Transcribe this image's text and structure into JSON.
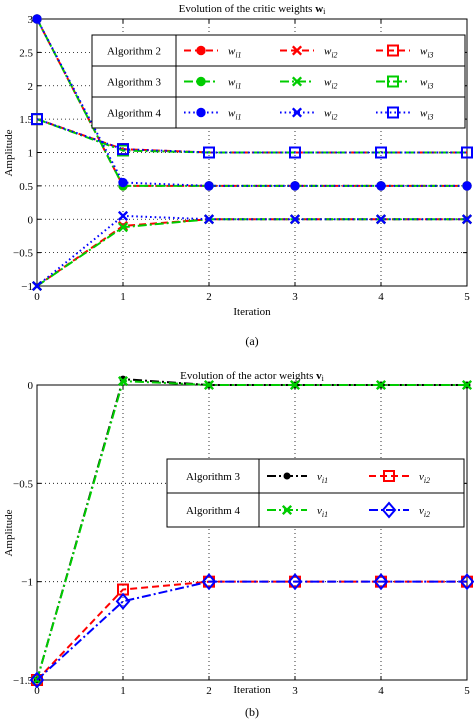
{
  "chart_data": [
    {
      "type": "line",
      "panel_label": "(a)",
      "title": "Evolution of the critic weights w_i",
      "title_text": "Evolution of the critic weights ",
      "title_symbol": "w",
      "title_symbol_sub": "i",
      "xlabel": "Iteration",
      "ylabel": "Amplitude",
      "xlim": [
        0,
        5
      ],
      "ylim": [
        -1,
        3
      ],
      "xticks": [
        "0",
        "1",
        "2",
        "3",
        "4",
        "5"
      ],
      "yticks": [
        "-1",
        "-0.5",
        "0",
        "0.5",
        "1",
        "1.5",
        "2",
        "2.5",
        "3"
      ],
      "grid": true,
      "legend_position": "top-right",
      "legend_rows": [
        {
          "label": "Algorithm 2",
          "entries": [
            "w_i1",
            "w_i2",
            "w_i3"
          ]
        },
        {
          "label": "Algorithm 3",
          "entries": [
            "w_i1",
            "w_i2",
            "w_i3"
          ]
        },
        {
          "label": "Algorithm 4",
          "entries": [
            "w_i1",
            "w_i2",
            "w_i3"
          ]
        }
      ],
      "x": [
        0,
        1,
        2,
        3,
        4,
        5
      ],
      "series": [
        {
          "name": "Algorithm 2 w_i1",
          "color": "#ff0000",
          "style": "dashed",
          "marker": "circle",
          "values": [
            3,
            0.5,
            0.5,
            0.5,
            0.5,
            0.5
          ]
        },
        {
          "name": "Algorithm 2 w_i2",
          "color": "#ff0000",
          "style": "dashed",
          "marker": "x",
          "values": [
            -1,
            -0.1,
            0,
            0,
            0,
            0
          ]
        },
        {
          "name": "Algorithm 2 w_i3",
          "color": "#ff0000",
          "style": "dashed",
          "marker": "square",
          "values": [
            1.5,
            1.05,
            1,
            1,
            1,
            1
          ]
        },
        {
          "name": "Algorithm 3 w_i1",
          "color": "#00cc00",
          "style": "dashdot",
          "marker": "circle",
          "values": [
            3,
            0.5,
            0.5,
            0.5,
            0.5,
            0.5
          ]
        },
        {
          "name": "Algorithm 3 w_i2",
          "color": "#00cc00",
          "style": "dashdot",
          "marker": "x",
          "values": [
            -1,
            -0.12,
            0,
            0,
            0,
            0
          ]
        },
        {
          "name": "Algorithm 3 w_i3",
          "color": "#00cc00",
          "style": "dashdot",
          "marker": "square",
          "values": [
            1.5,
            1.03,
            1,
            1,
            1,
            1
          ]
        },
        {
          "name": "Algorithm 4 w_i1",
          "color": "#0000ff",
          "style": "dotted",
          "marker": "circle",
          "values": [
            3,
            0.55,
            0.5,
            0.5,
            0.5,
            0.5
          ]
        },
        {
          "name": "Algorithm 4 w_i2",
          "color": "#0000ff",
          "style": "dotted",
          "marker": "x",
          "values": [
            -1,
            0.05,
            0,
            0,
            0,
            0
          ]
        },
        {
          "name": "Algorithm 4 w_i3",
          "color": "#0000ff",
          "style": "dotted",
          "marker": "square",
          "values": [
            1.5,
            1.05,
            1,
            1,
            1,
            1
          ]
        }
      ]
    },
    {
      "type": "line",
      "panel_label": "(b)",
      "title": "Evolution of the actor weights v_i",
      "title_text": "Evolution of the actor weights ",
      "title_symbol": "v",
      "title_symbol_sub": "i",
      "xlabel": "Iteration",
      "ylabel": "Amplitude",
      "xlim": [
        0,
        5
      ],
      "ylim": [
        -1.5,
        0
      ],
      "xticks": [
        "0",
        "1",
        "2",
        "3",
        "4",
        "5"
      ],
      "yticks": [
        "-1.5",
        "-1",
        "-0.5",
        "0"
      ],
      "grid": true,
      "legend_position": "center-right",
      "legend_rows": [
        {
          "label": "Algorithm 3",
          "entries": [
            "v_i1",
            "v_i2"
          ]
        },
        {
          "label": "Algorithm 4",
          "entries": [
            "v_i1",
            "v_i2"
          ]
        }
      ],
      "x": [
        0,
        1,
        2,
        3,
        4,
        5
      ],
      "series": [
        {
          "name": "Algorithm 3 v_i1",
          "color": "#000000",
          "style": "dashdot",
          "marker": "point",
          "values": [
            -1.5,
            0.03,
            0,
            0,
            0,
            0
          ]
        },
        {
          "name": "Algorithm 3 v_i2",
          "color": "#ff0000",
          "style": "dashed",
          "marker": "square",
          "values": [
            -1.5,
            -1.04,
            -1,
            -1,
            -1,
            -1
          ]
        },
        {
          "name": "Algorithm 4 v_i1",
          "color": "#00cc00",
          "style": "dashdot",
          "marker": "x",
          "values": [
            -1.5,
            0.02,
            0,
            0,
            0,
            0
          ]
        },
        {
          "name": "Algorithm 4 v_i2",
          "color": "#0000ff",
          "style": "dashdot",
          "marker": "diamond",
          "values": [
            -1.5,
            -1.1,
            -1,
            -1,
            -1,
            -1
          ]
        }
      ]
    }
  ]
}
